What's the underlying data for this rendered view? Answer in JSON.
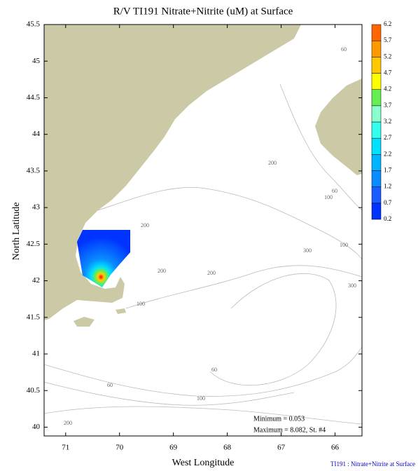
{
  "chart_data": {
    "type": "map",
    "title": "R/V TI191 Nitrate+Nitrite (uM) at Surface",
    "x_label": "West Longitude",
    "y_label": "North Latitude",
    "xlim": [
      71.4,
      65.5
    ],
    "xticks": [
      71,
      70,
      69,
      68,
      67,
      66
    ],
    "ylim": [
      39.88,
      45.5
    ],
    "yticks": [
      40,
      40.5,
      41,
      41.5,
      42,
      42.5,
      43,
      43.5,
      44,
      44.5,
      45,
      45.5
    ],
    "colorbar": {
      "ticks": [
        0.2,
        0.7,
        1.2,
        1.7,
        2.2,
        2.7,
        3.2,
        3.7,
        4.2,
        4.7,
        5.2,
        5.7,
        6.2
      ],
      "colors": [
        "#0033ff",
        "#1a5cff",
        "#0a8cff",
        "#00b4ff",
        "#00e0ff",
        "#33ffee",
        "#88ffcc",
        "#66ee55",
        "#ffff00",
        "#ffc800",
        "#ff9900",
        "#ff6600",
        "#ff0000"
      ]
    },
    "land_color": "#cccaa6",
    "contour_labels": [
      "60",
      "200",
      "60",
      "100",
      "200",
      "100",
      "300",
      "200",
      "200",
      "300",
      "100",
      "60",
      "60",
      "100",
      "200"
    ],
    "annotations": [
      "Minimum = 0.053",
      "Maximum = 8.082, St. #4"
    ],
    "footer": "TI191 : Nitrate+Nitrite at Surface"
  }
}
